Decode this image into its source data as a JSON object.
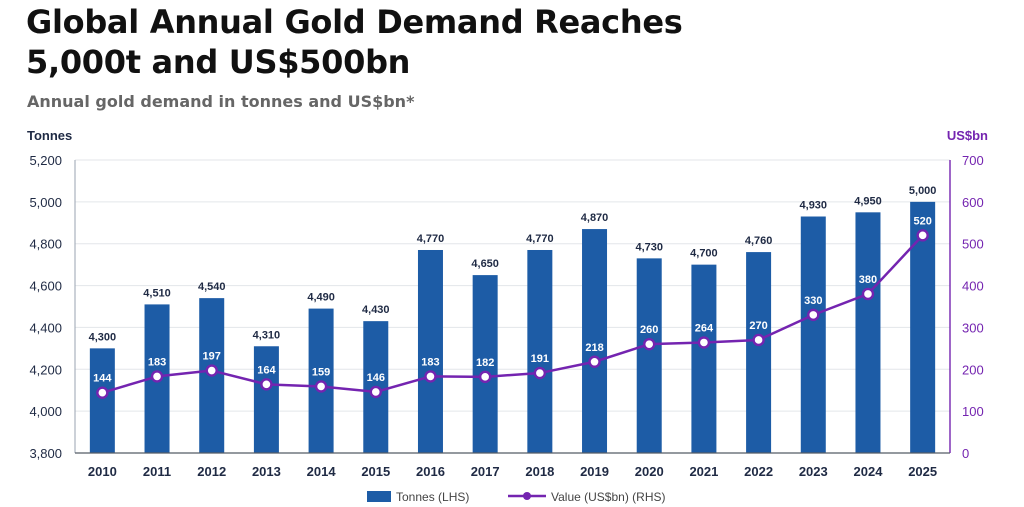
{
  "title_line1": "Global Annual Gold Demand Reaches",
  "title_line2": "5,000t and US$500bn",
  "subtitle": "Annual gold demand in tonnes and US$bn*",
  "colors": {
    "bar": "#1d5ca6",
    "line": "#7424b0",
    "marker_fill": "#ffffff",
    "grid": "#e3e6ea",
    "axis_text": "#1f2a44",
    "right_axis_text": "#7424b0"
  },
  "chart_data": {
    "type": "bar",
    "title": "Global Annual Gold Demand Reaches 5,000t and US$500bn",
    "subtitle": "Annual gold demand in tonnes and US$bn*",
    "categories": [
      "2010",
      "2011",
      "2012",
      "2013",
      "2014",
      "2015",
      "2016",
      "2017",
      "2018",
      "2019",
      "2020",
      "2021",
      "2022",
      "2023",
      "2024",
      "2025"
    ],
    "series": [
      {
        "name": "Tonnes (LHS)",
        "type": "bar",
        "axis": "left",
        "values": [
          4300,
          4510,
          4540,
          4310,
          4490,
          4430,
          4770,
          4650,
          4770,
          4870,
          4730,
          4700,
          4760,
          4930,
          4950,
          5000
        ],
        "labels": [
          "4,300",
          "4,510",
          "4,540",
          "4,310",
          "4,490",
          "4,430",
          "4,770",
          "4,650",
          "4,770",
          "4,870",
          "4,730",
          "4,700",
          "4,760",
          "4,930",
          "4,950",
          "5,000"
        ]
      },
      {
        "name": "Value (US$bn) (RHS)",
        "type": "line",
        "axis": "right",
        "values": [
          144,
          183,
          197,
          164,
          159,
          146,
          183,
          182,
          191,
          218,
          260,
          264,
          270,
          330,
          380,
          520
        ],
        "labels": [
          "144",
          "183",
          "197",
          "164",
          "159",
          "146",
          "183",
          "182",
          "191",
          "218",
          "260",
          "264",
          "270",
          "330",
          "380",
          "520"
        ]
      }
    ],
    "y_left": {
      "label": "Tonnes",
      "min": 3800,
      "max": 5200,
      "ticks": [
        3800,
        4000,
        4200,
        4400,
        4600,
        4800,
        5000,
        5200
      ],
      "tick_labels": [
        "3,800",
        "4,000",
        "4,200",
        "4,400",
        "4,600",
        "4,800",
        "5,000",
        "5,200"
      ]
    },
    "y_right": {
      "label": "US$bn",
      "min": 0,
      "max": 700,
      "ticks": [
        0,
        100,
        200,
        300,
        400,
        500,
        600,
        700
      ],
      "tick_labels": [
        "0",
        "100",
        "200",
        "300",
        "400",
        "500",
        "600",
        "700"
      ]
    },
    "grid": true,
    "legend_position": "bottom-center"
  }
}
